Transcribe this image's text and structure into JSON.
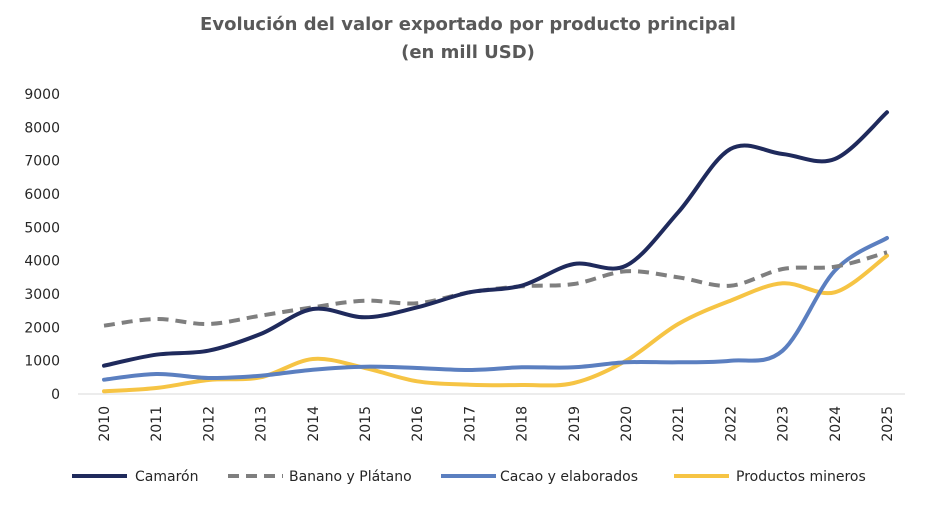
{
  "chart_data": {
    "type": "line",
    "title": "Evolución del valor exportado por producto principal",
    "subtitle": "(en mill USD)",
    "xlabel": "",
    "ylabel": "",
    "ylim": [
      0,
      9000
    ],
    "yticks": [
      0,
      1000,
      2000,
      3000,
      4000,
      5000,
      6000,
      7000,
      8000,
      9000
    ],
    "grid": false,
    "legend_position": "bottom",
    "x": [
      "2010",
      "2011",
      "2012",
      "2013",
      "2014",
      "2015",
      "2016",
      "2017",
      "2018",
      "2019",
      "2020",
      "2021",
      "2022",
      "2023",
      "2024",
      "2025"
    ],
    "series": [
      {
        "name": "Camarón",
        "color": "#1f2a5c",
        "dash": "solid",
        "values": [
          850,
          1180,
          1300,
          1800,
          2550,
          2300,
          2600,
          3050,
          3250,
          3900,
          3850,
          5450,
          7350,
          7200,
          7050,
          8450
        ]
      },
      {
        "name": "Banano y Plátano",
        "color": "#7f7f7f",
        "dash": "dashed",
        "values": [
          2050,
          2250,
          2100,
          2350,
          2600,
          2800,
          2720,
          3050,
          3230,
          3300,
          3680,
          3500,
          3250,
          3750,
          3820,
          4250
        ]
      },
      {
        "name": "Cacao y elaborados",
        "color": "#5b7fc0",
        "dash": "solid",
        "values": [
          430,
          600,
          480,
          550,
          730,
          820,
          780,
          720,
          800,
          800,
          950,
          950,
          1000,
          1300,
          3700,
          4680
        ]
      },
      {
        "name": "Productos mineros",
        "color": "#f6c444",
        "dash": "solid",
        "values": [
          80,
          180,
          420,
          500,
          1050,
          780,
          380,
          280,
          270,
          330,
          1000,
          2100,
          2800,
          3320,
          3050,
          4150
        ]
      }
    ]
  }
}
